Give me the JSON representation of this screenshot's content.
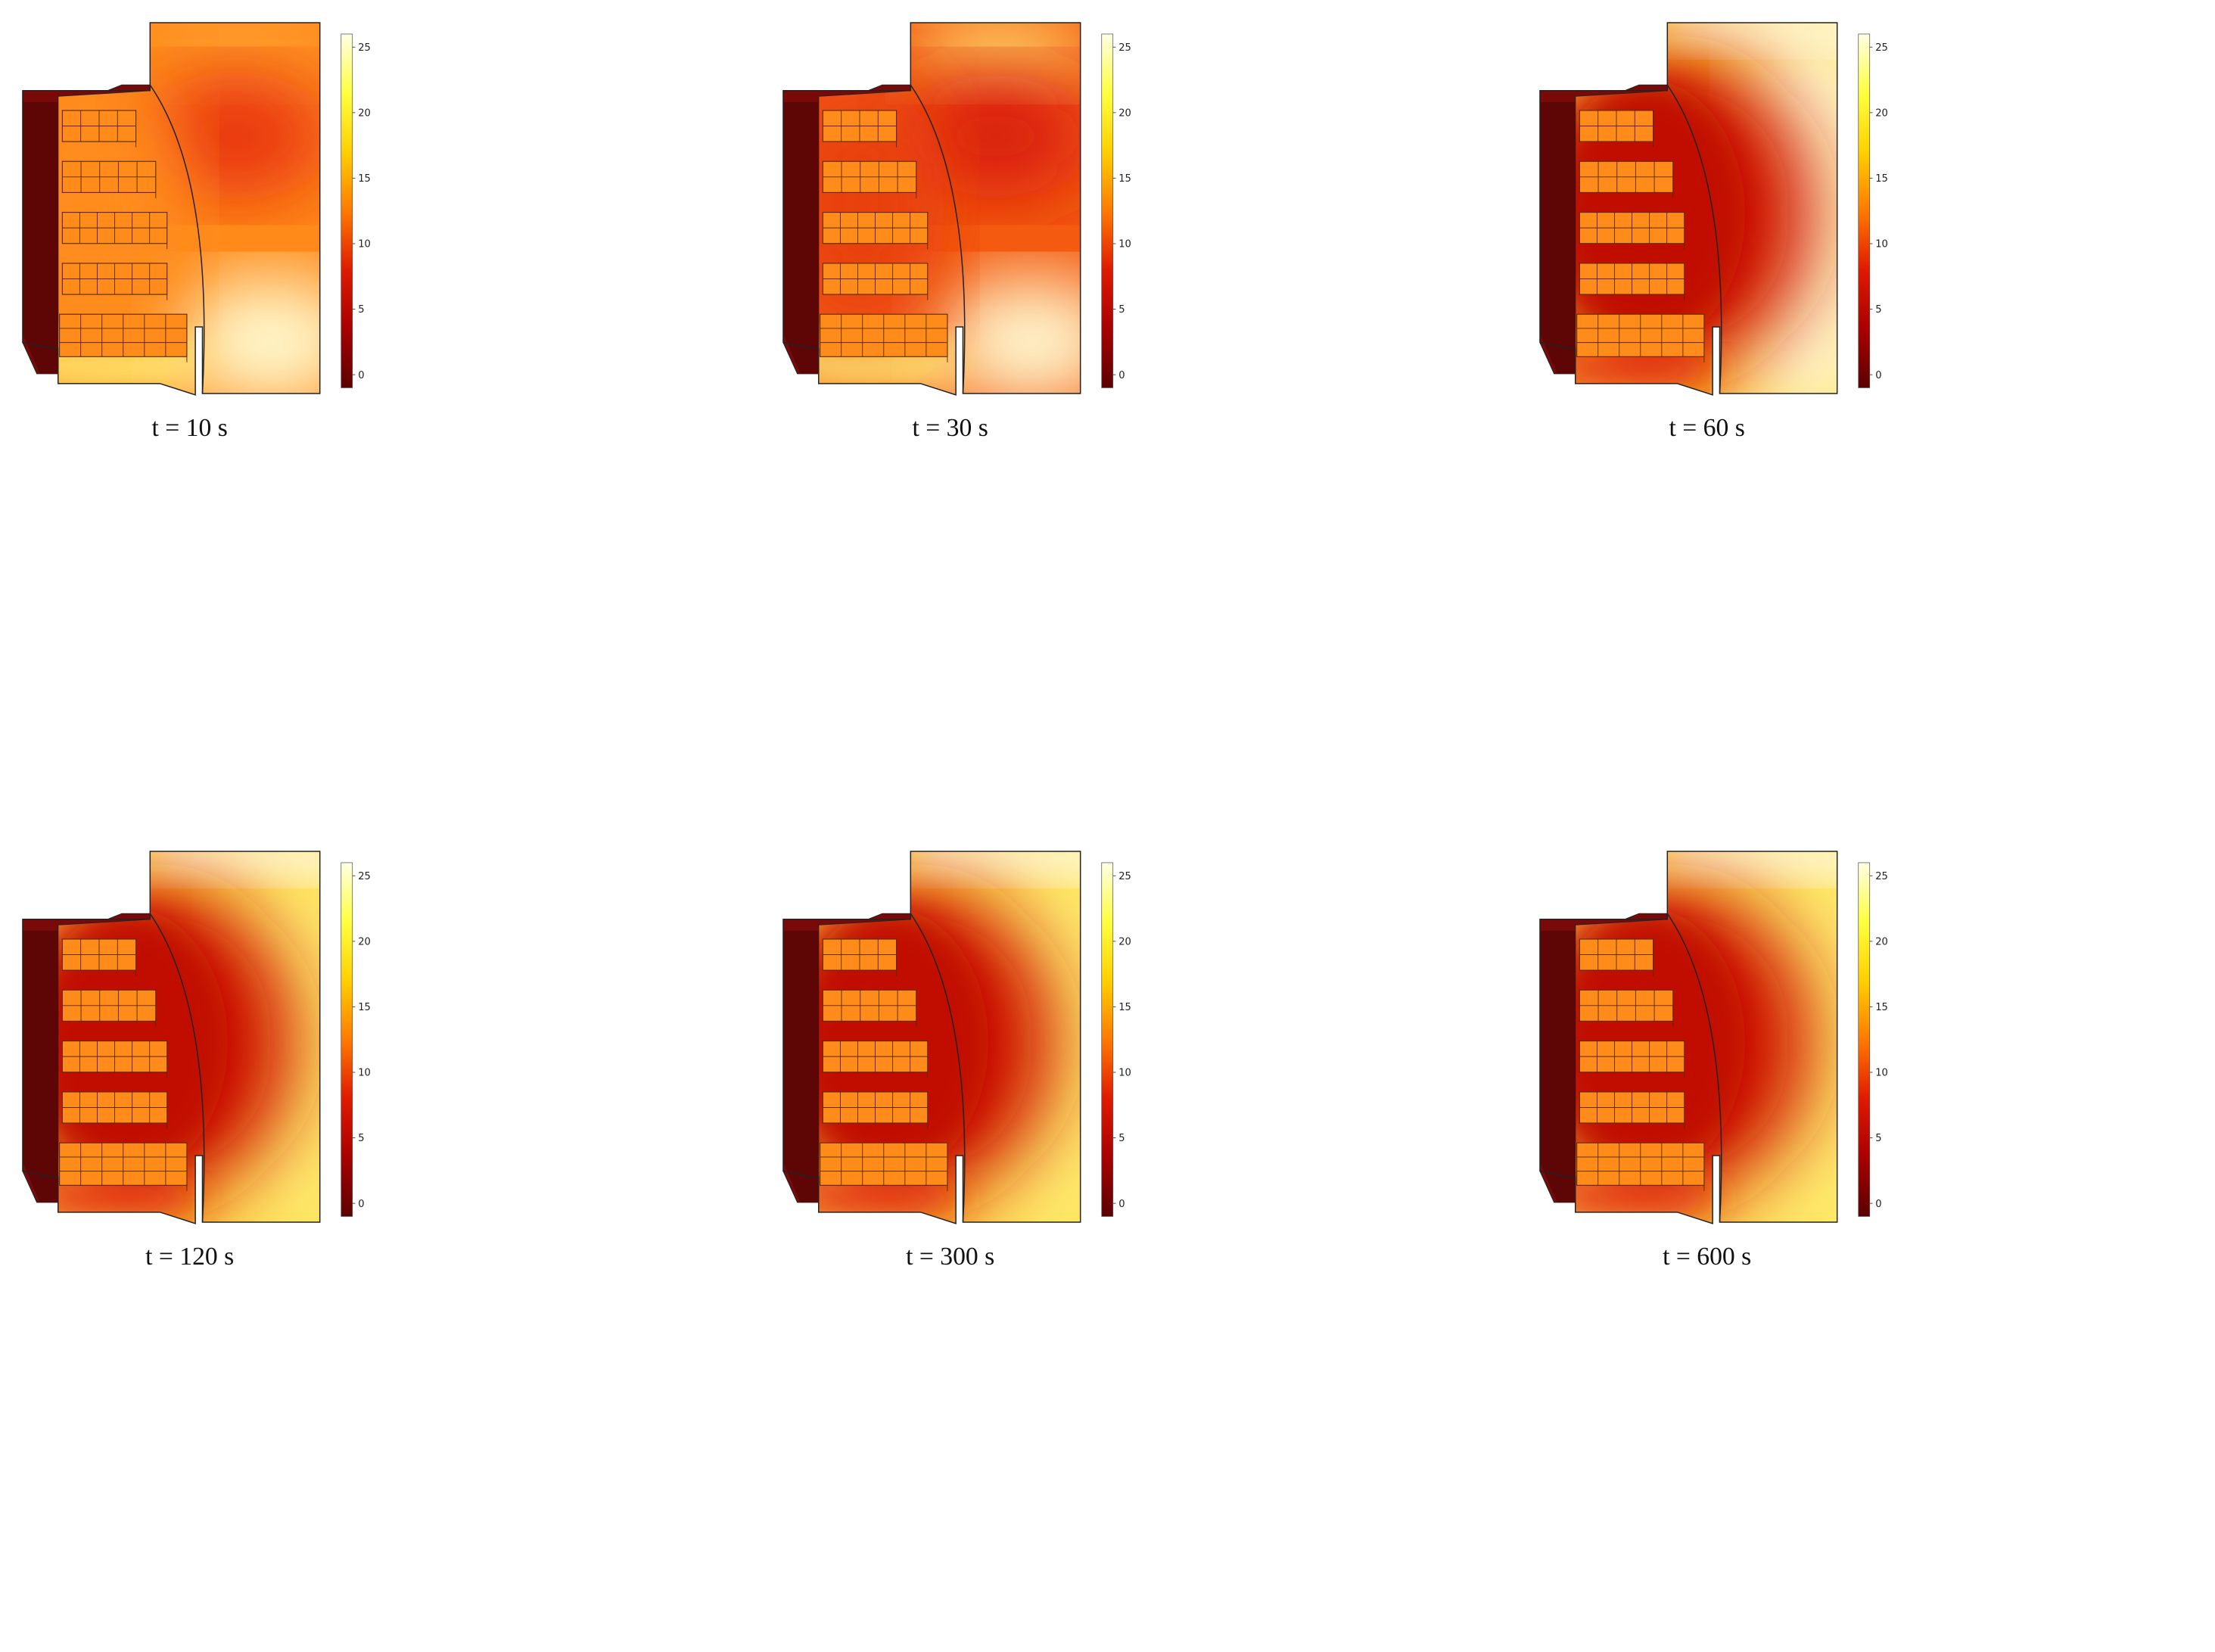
{
  "figure": {
    "panels": [
      {
        "caption": "t = 10 s",
        "time_s": 10,
        "ticks": [
          "25",
          "20",
          "15",
          "10",
          "5",
          "0"
        ],
        "stage": 0
      },
      {
        "caption": "t = 30 s",
        "time_s": 30,
        "ticks": [
          "25",
          "20",
          "15",
          "10",
          "5",
          "0"
        ],
        "stage": 1
      },
      {
        "caption": "t = 60 s",
        "time_s": 60,
        "ticks": [
          "25",
          "20",
          "15",
          "10",
          "5",
          "0"
        ],
        "stage": 2
      },
      {
        "caption": "t = 120 s",
        "time_s": 120,
        "ticks": [
          "25",
          "20",
          "15",
          "10",
          "5",
          "0"
        ],
        "stage": 3
      },
      {
        "caption": "t = 300 s",
        "time_s": 300,
        "ticks": [
          "25",
          "20",
          "15",
          "10",
          "5",
          "0"
        ],
        "stage": 4
      },
      {
        "caption": "t = 600 s",
        "time_s": 600,
        "ticks": [
          "25",
          "20",
          "15",
          "10",
          "5",
          "0"
        ],
        "stage": 5
      }
    ],
    "colorscale": {
      "min": -1,
      "max": 26,
      "stops": [
        "#5c0000",
        "#a80000",
        "#e01a00",
        "#ff7a00",
        "#ffd000",
        "#ffff40",
        "#ffffe6"
      ]
    },
    "colors": {
      "wall": "#7a0a0a",
      "wall_dark": "#5e0606",
      "boxes": "#ff8c1a",
      "box_lines": "#5a2a00",
      "outline": "#222222"
    }
  }
}
